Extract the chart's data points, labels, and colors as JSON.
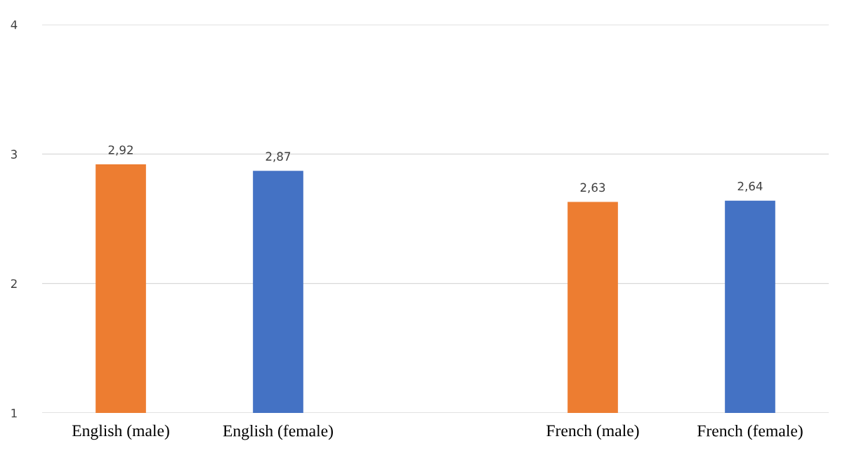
{
  "chart_data": {
    "type": "bar",
    "categories": [
      "English (male)",
      "English (female)",
      null,
      "French (male)",
      "French (female)"
    ],
    "values": [
      2.92,
      2.87,
      null,
      2.63,
      2.64
    ],
    "colors": [
      "#ed7d31",
      "#4472c4",
      null,
      "#ed7d31",
      "#4472c4"
    ],
    "value_labels": [
      "2,92",
      "2,87",
      null,
      "2,63",
      "2,64"
    ],
    "ylim": [
      1,
      4
    ],
    "yticks": [
      1,
      2,
      3,
      4
    ],
    "grid": "y",
    "legend": false
  }
}
